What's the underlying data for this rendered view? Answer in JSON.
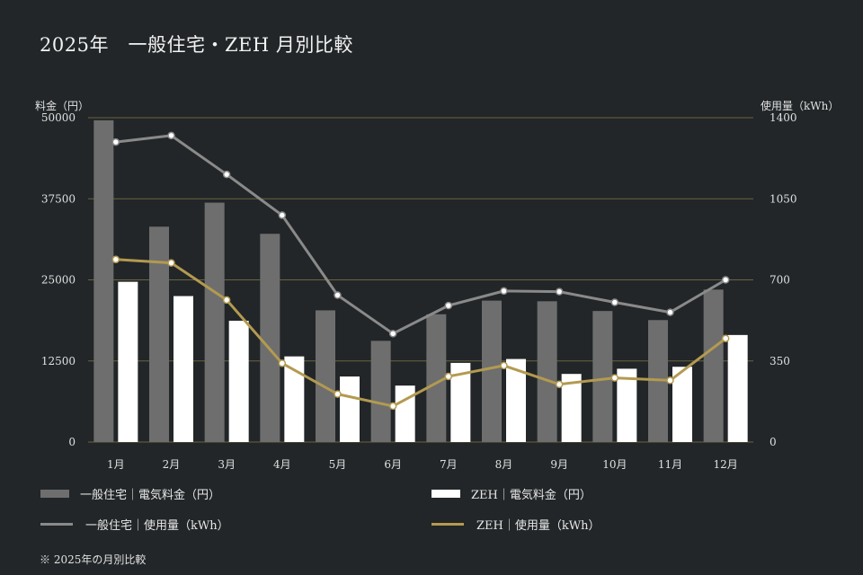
{
  "title": "2025年　一般住宅・ZEH 月別比較",
  "footnote": "※ 2025年の月別比較",
  "colors": {
    "background": "#222628",
    "grid": "#6b6440",
    "general_bar": "#6e6e6e",
    "zeh_bar": "#ffffff",
    "general_line": "#8a8a8a",
    "zeh_line": "#b39a50",
    "marker_fill": "#ffffff"
  },
  "chart_data": {
    "type": "bar",
    "categories": [
      "1月",
      "2月",
      "3月",
      "4月",
      "5月",
      "6月",
      "7月",
      "8月",
      "9月",
      "10月",
      "11月",
      "12月"
    ],
    "left_axis": {
      "label": "料金（円）",
      "ylim": [
        0,
        50000
      ],
      "ticks": [
        "0",
        "12500",
        "25000",
        "37500",
        "50000"
      ]
    },
    "right_axis": {
      "label": "使用量（kWh）",
      "ylim": [
        0,
        1400
      ],
      "ticks": [
        "0",
        "350",
        "700",
        "1050",
        "1400"
      ]
    },
    "grid": true,
    "legend_position": "bottom",
    "series": [
      {
        "name": "一般住宅｜電気料金（円）",
        "type": "bar",
        "axis": "left",
        "values": [
          49600,
          33200,
          36900,
          32100,
          20300,
          15600,
          19700,
          21800,
          21700,
          20200,
          18800,
          23500
        ]
      },
      {
        "name": "ZEH｜電気料金（円）",
        "type": "bar",
        "axis": "left",
        "values": [
          24700,
          22500,
          18700,
          13200,
          10100,
          8700,
          12200,
          12800,
          10500,
          11300,
          11600,
          16500
        ]
      },
      {
        "name": "一般住宅｜使用量（kWh）",
        "type": "line",
        "axis": "right",
        "values": [
          1295,
          1323,
          1155,
          979,
          634,
          468,
          589,
          652,
          649,
          603,
          560,
          700
        ]
      },
      {
        "name": "ZEH｜使用量（kWh）",
        "type": "line",
        "axis": "right",
        "values": [
          788,
          773,
          613,
          340,
          207,
          155,
          283,
          330,
          249,
          277,
          266,
          447
        ]
      }
    ]
  }
}
